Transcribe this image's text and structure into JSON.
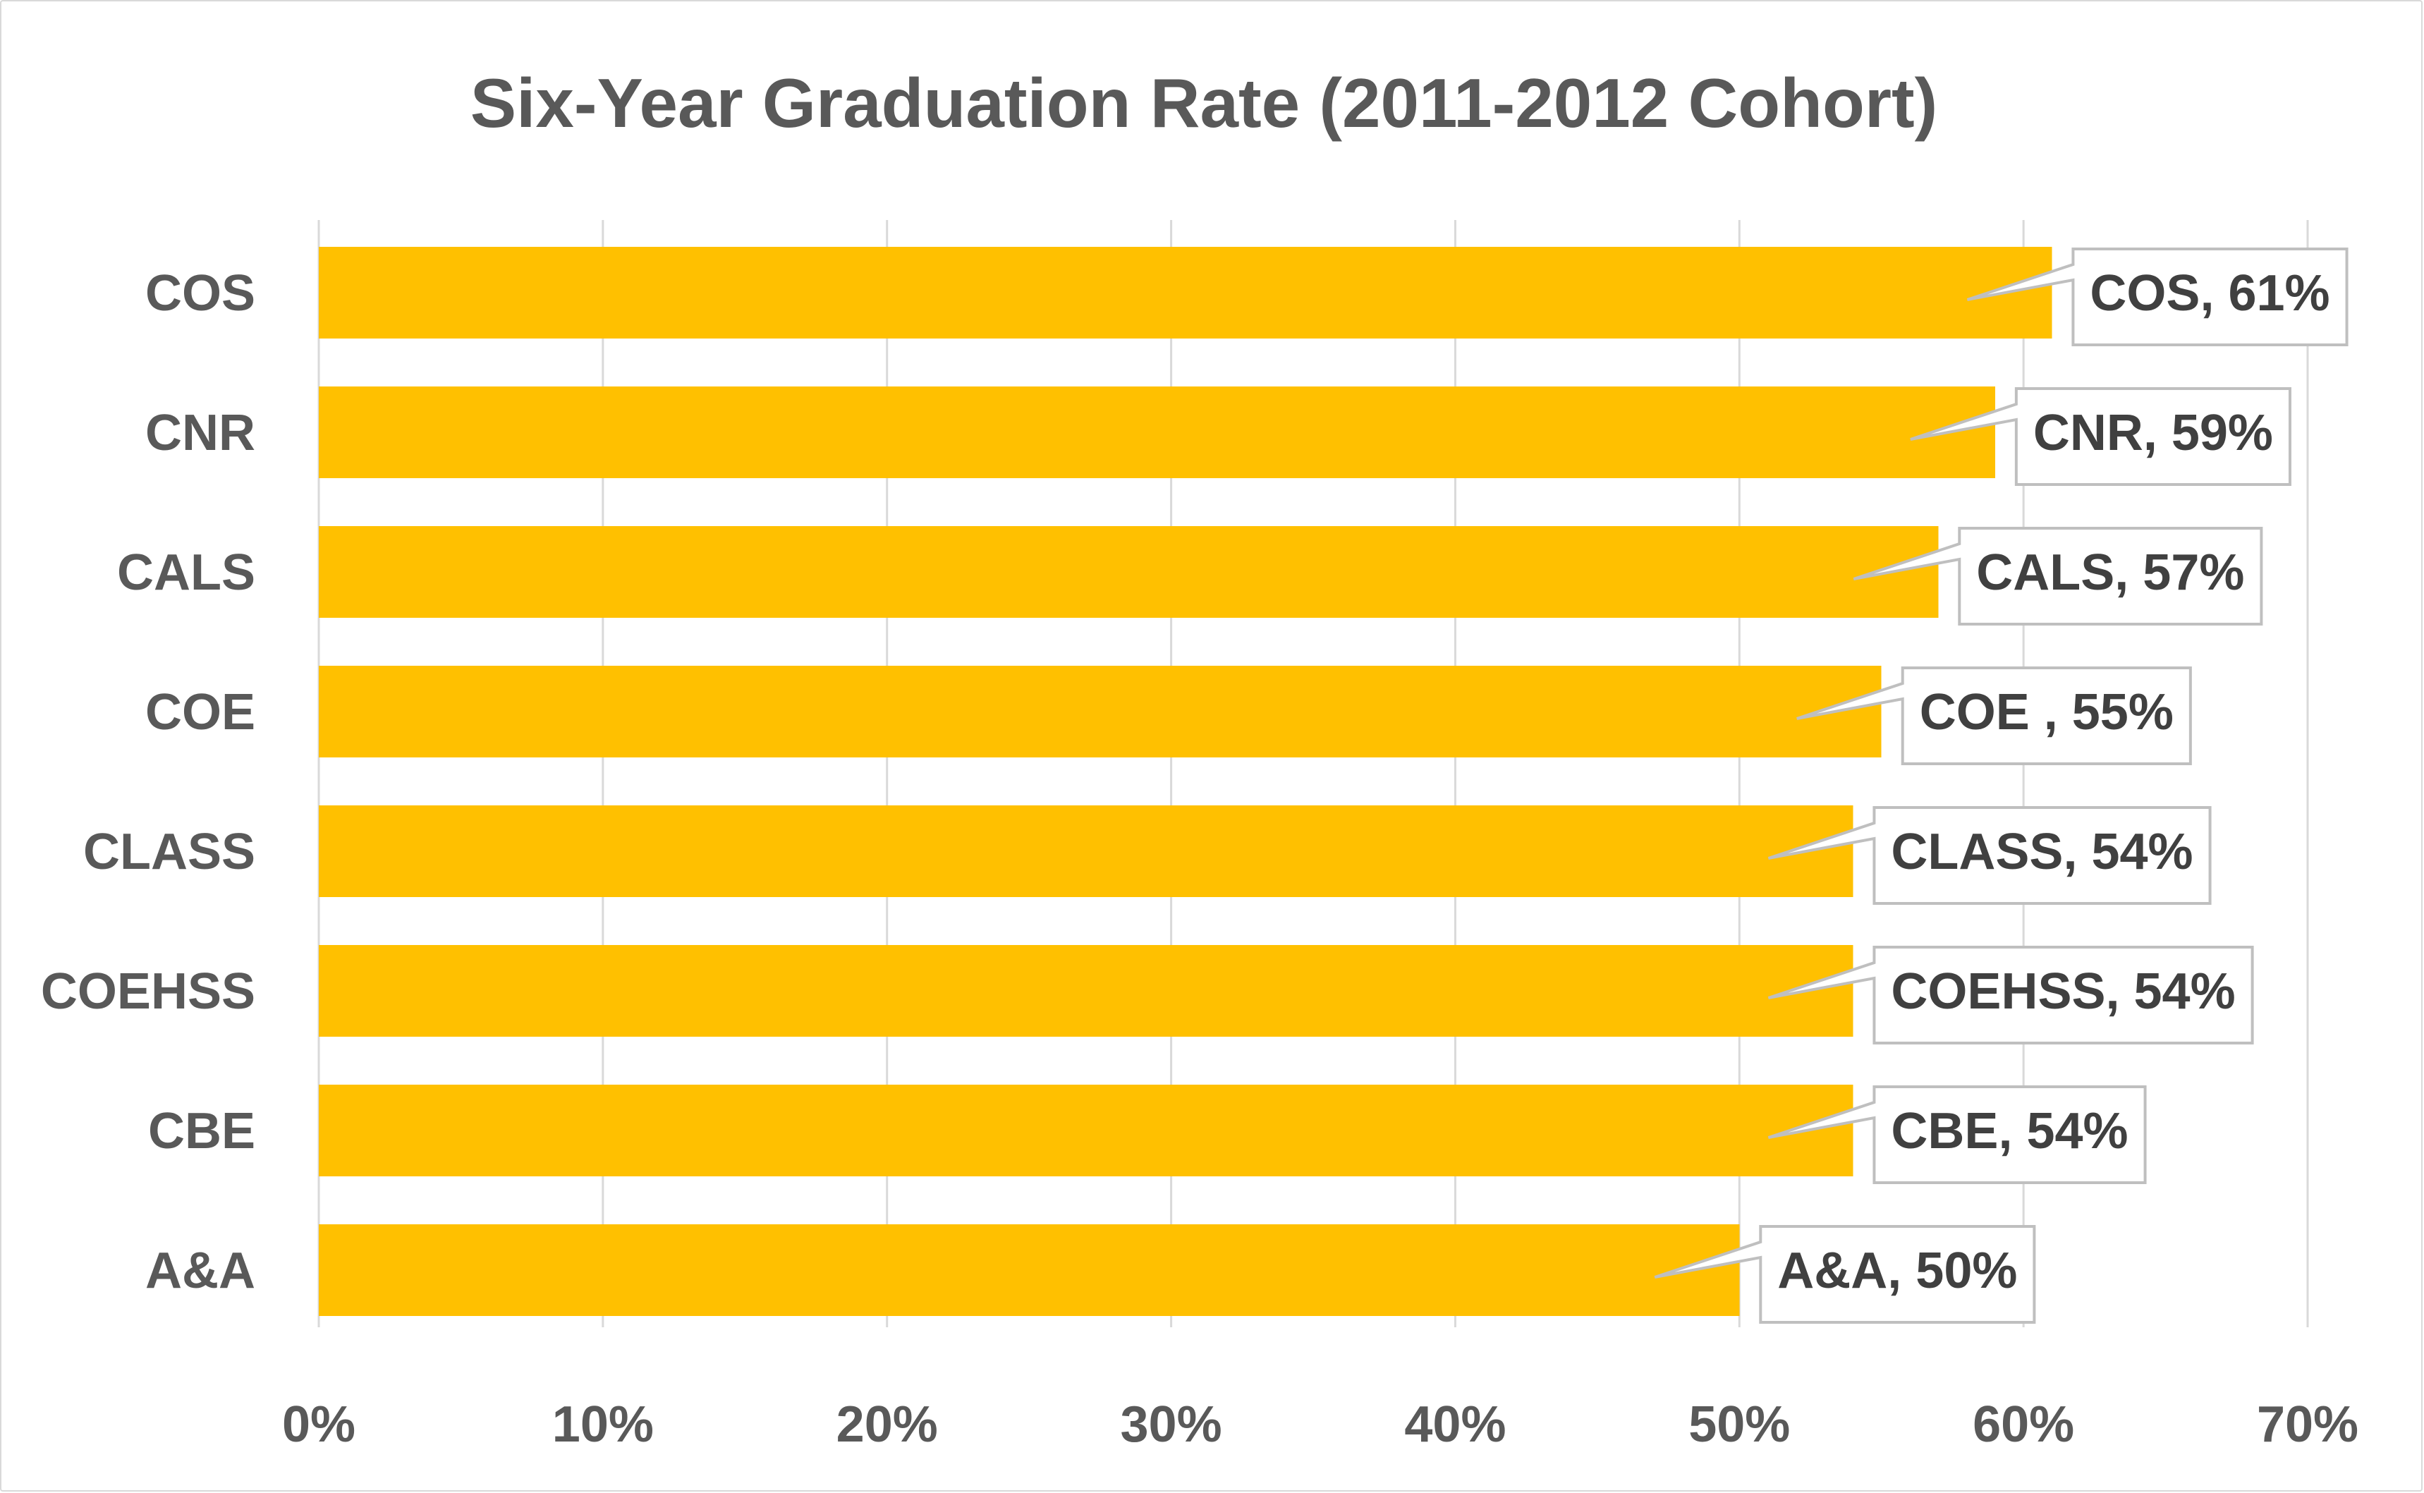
{
  "chart_data": {
    "type": "bar",
    "orientation": "horizontal",
    "title": "Six-Year Graduation Rate (2011-2012 Cohort)",
    "xlabel": "",
    "ylabel": "",
    "categories": [
      "COS",
      "CNR",
      "CALS",
      "COE",
      "CLASS",
      "COEHSS",
      "CBE",
      "A&A"
    ],
    "values": [
      61,
      59,
      57,
      55,
      54,
      54,
      54,
      50
    ],
    "data_labels": [
      "COS, 61%",
      "CNR, 59%",
      "CALS, 57%",
      "COE , 55%",
      "CLASS, 54%",
      "COEHSS, 54%",
      "CBE, 54%",
      "A&A, 50%"
    ],
    "xlim": [
      0,
      70
    ],
    "x_ticks": [
      0,
      10,
      20,
      30,
      40,
      50,
      60,
      70
    ],
    "x_tick_labels": [
      "0%",
      "10%",
      "20%",
      "30%",
      "40%",
      "50%",
      "60%",
      "70%"
    ],
    "grid": true,
    "legend": "none",
    "colors": {
      "bar": "#FFC000",
      "gridline": "#D9D9D9",
      "text": "#595959",
      "callout_border": "#BFBFBF"
    }
  }
}
